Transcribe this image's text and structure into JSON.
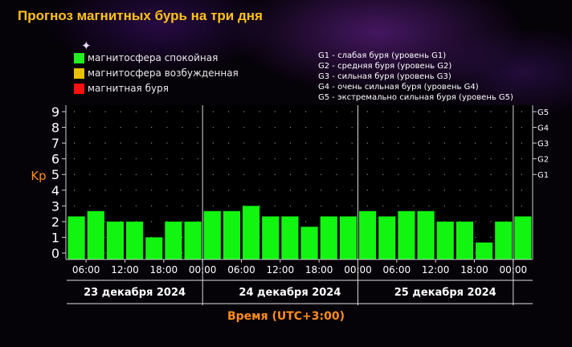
{
  "header": {
    "title": "Прогноз магнитных бурь на три дня"
  },
  "legend": {
    "items": [
      {
        "label": "магнитосфера спокойная",
        "color": "#22ee22"
      },
      {
        "label": "магнитосфера возбужденная",
        "color": "#e8c000"
      },
      {
        "label": "магнитная буря",
        "color": "#ff1010"
      }
    ]
  },
  "storm_levels": {
    "descriptions": [
      "G1 - слабая буря (уровень G1)",
      "G2 - средняя буря (уровень G2)",
      "G3 - сильная буря (уровень G3)",
      "G4 - очень сильная буря (уровень G4)",
      "G5 - экстремально сильная буря (уровень G5)"
    ]
  },
  "chart_data": {
    "type": "bar",
    "ylabel": "Kp",
    "xlabel": "Время (UTC+3:00)",
    "ylim": [
      0,
      9
    ],
    "y_ticks": [
      "0",
      "1",
      "2",
      "3",
      "4",
      "5",
      "6",
      "7",
      "8",
      "9"
    ],
    "right_axis_labels": [
      {
        "label": "G1",
        "kp": 5
      },
      {
        "label": "G2",
        "kp": 6
      },
      {
        "label": "G3",
        "kp": 7
      },
      {
        "label": "G4",
        "kp": 8
      },
      {
        "label": "G5",
        "kp": 9
      }
    ],
    "time_tick_labels": [
      "06:00",
      "12:00",
      "18:00",
      "00:00",
      "06:00",
      "12:00",
      "18:00",
      "00:00",
      "06:00",
      "12:00",
      "18:00",
      "00:00"
    ],
    "days": [
      "23 декабря 2024",
      "24 декабря 2024",
      "25 декабря 2024"
    ],
    "values": [
      2.33,
      2.67,
      2.0,
      2.0,
      1.0,
      2.0,
      2.0,
      2.67,
      2.67,
      3.0,
      2.33,
      2.33,
      1.67,
      2.33,
      2.33,
      2.67,
      2.33,
      2.67,
      2.67,
      2.0,
      2.0,
      0.67,
      2.0,
      2.33
    ],
    "bar_color": "#11f511",
    "grid": true
  }
}
